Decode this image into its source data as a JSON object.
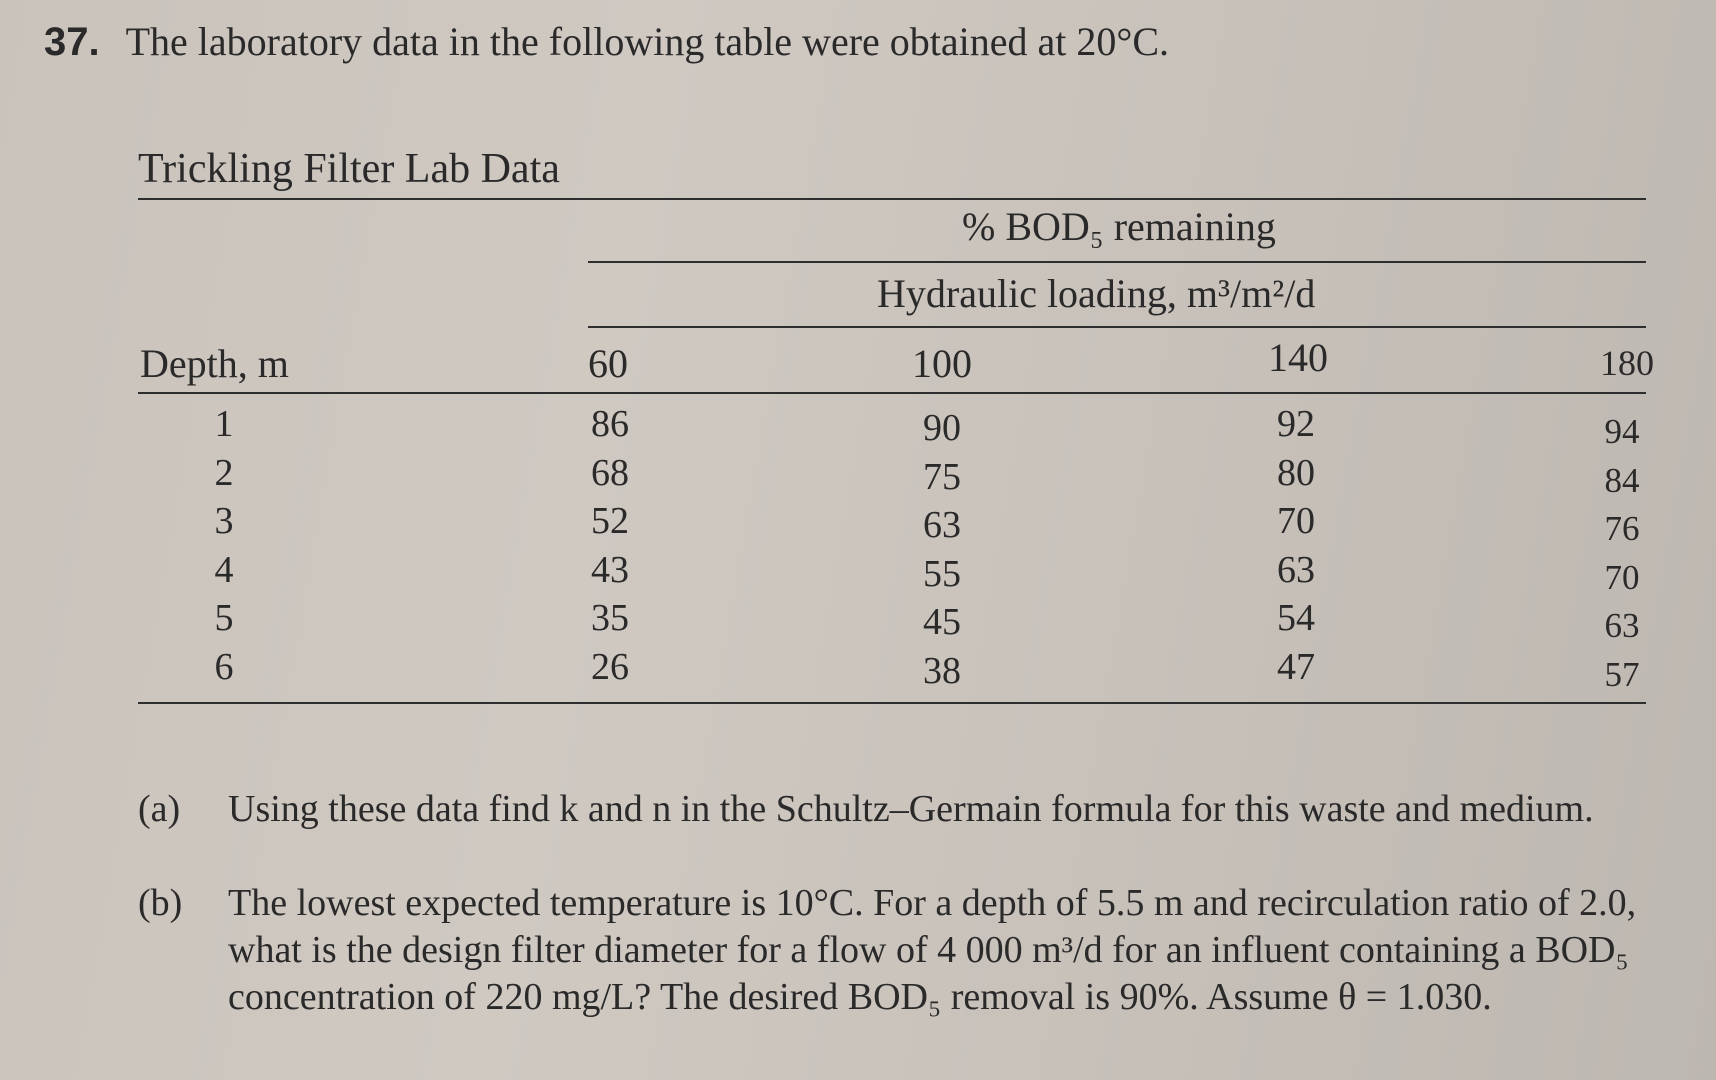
{
  "problem": {
    "number": "37.",
    "statement": "The laboratory data in the following table were obtained at 20°C."
  },
  "table": {
    "caption": "Trickling Filter Lab Data",
    "spanner": "% BOD₅ remaining",
    "subheader": "Hydraulic loading, m³/m²/d",
    "depth_header": "Depth, m",
    "loading_columns": [
      "60",
      "100",
      "140",
      "180"
    ],
    "depths": [
      "1",
      "2",
      "3",
      "4",
      "5",
      "6"
    ],
    "data": [
      [
        "86",
        "68",
        "52",
        "43",
        "35",
        "26"
      ],
      [
        "90",
        "75",
        "63",
        "55",
        "45",
        "38"
      ],
      [
        "92",
        "80",
        "70",
        "63",
        "54",
        "47"
      ],
      [
        "94",
        "84",
        "76",
        "70",
        "63",
        "57"
      ]
    ]
  },
  "questions": [
    {
      "label": "(a)",
      "text": "Using these data find k and n in the Schultz–Germain formula for this waste and medium."
    },
    {
      "label": "(b)",
      "text": "The lowest expected temperature is 10°C. For a depth of 5.5 m and recirculation ratio of 2.0, what is the design filter diameter for a flow of 4 000 m³/d for an influent containing a BOD₅ concentration of 220 mg/L? The desired BOD₅ removal is 90%. Assume θ = 1.030."
    }
  ]
}
